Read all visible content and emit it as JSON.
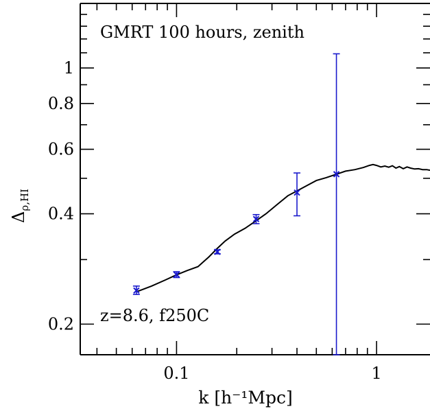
{
  "chart_data": {
    "type": "line",
    "title": "",
    "xlabel": "k [h⁻¹Mpc]",
    "ylabel": "Δ",
    "ylabel_sub": "ρ,HI",
    "xscale": "log",
    "yscale": "log",
    "xlim": [
      0.033,
      1.85
    ],
    "ylim": [
      0.165,
      1.5
    ],
    "x_ticks": [
      {
        "value": 0.1,
        "label": "0.1"
      },
      {
        "value": 1,
        "label": "1"
      }
    ],
    "y_ticks": [
      {
        "value": 0.2,
        "label": "0.2"
      },
      {
        "value": 0.4,
        "label": "0.4"
      },
      {
        "value": 0.6,
        "label": "0.6"
      },
      {
        "value": 0.8,
        "label": "0.8"
      },
      {
        "value": 1,
        "label": "1"
      }
    ],
    "annotations": [
      "GMRT 100 hours, zenith",
      "z=8.6, f250C"
    ],
    "colors": {
      "curve": "#000000",
      "errorbars": "#1a1acc",
      "axes": "#000000"
    },
    "series": [
      {
        "kind": "line",
        "x": [
          0.063,
          0.075,
          0.088,
          0.099,
          0.113,
          0.128,
          0.145,
          0.16,
          0.175,
          0.195,
          0.22,
          0.25,
          0.28,
          0.32,
          0.36,
          0.4,
          0.45,
          0.5,
          0.56,
          0.63,
          0.7,
          0.78,
          0.86,
          0.92,
          0.96,
          1.0,
          1.05,
          1.1,
          1.15,
          1.2,
          1.25,
          1.3,
          1.36,
          1.42,
          1.48,
          1.55,
          1.62,
          1.7,
          1.78,
          1.85
        ],
        "y": [
          0.245,
          0.254,
          0.264,
          0.272,
          0.28,
          0.287,
          0.305,
          0.322,
          0.337,
          0.352,
          0.365,
          0.383,
          0.4,
          0.425,
          0.448,
          0.462,
          0.478,
          0.493,
          0.502,
          0.513,
          0.523,
          0.528,
          0.535,
          0.542,
          0.545,
          0.542,
          0.537,
          0.54,
          0.536,
          0.541,
          0.533,
          0.538,
          0.531,
          0.537,
          0.533,
          0.53,
          0.531,
          0.528,
          0.528,
          0.526
        ]
      },
      {
        "kind": "errorbar",
        "x": [
          0.063,
          0.1,
          0.16,
          0.25,
          0.4,
          0.63
        ],
        "y": [
          0.247,
          0.273,
          0.315,
          0.387,
          0.457,
          0.513
        ],
        "yerr_low": [
          0.006,
          0.005,
          0.004,
          0.011,
          0.062,
          0.35
        ],
        "yerr_high": [
          0.007,
          0.005,
          0.004,
          0.011,
          0.06,
          0.58
        ]
      }
    ]
  }
}
